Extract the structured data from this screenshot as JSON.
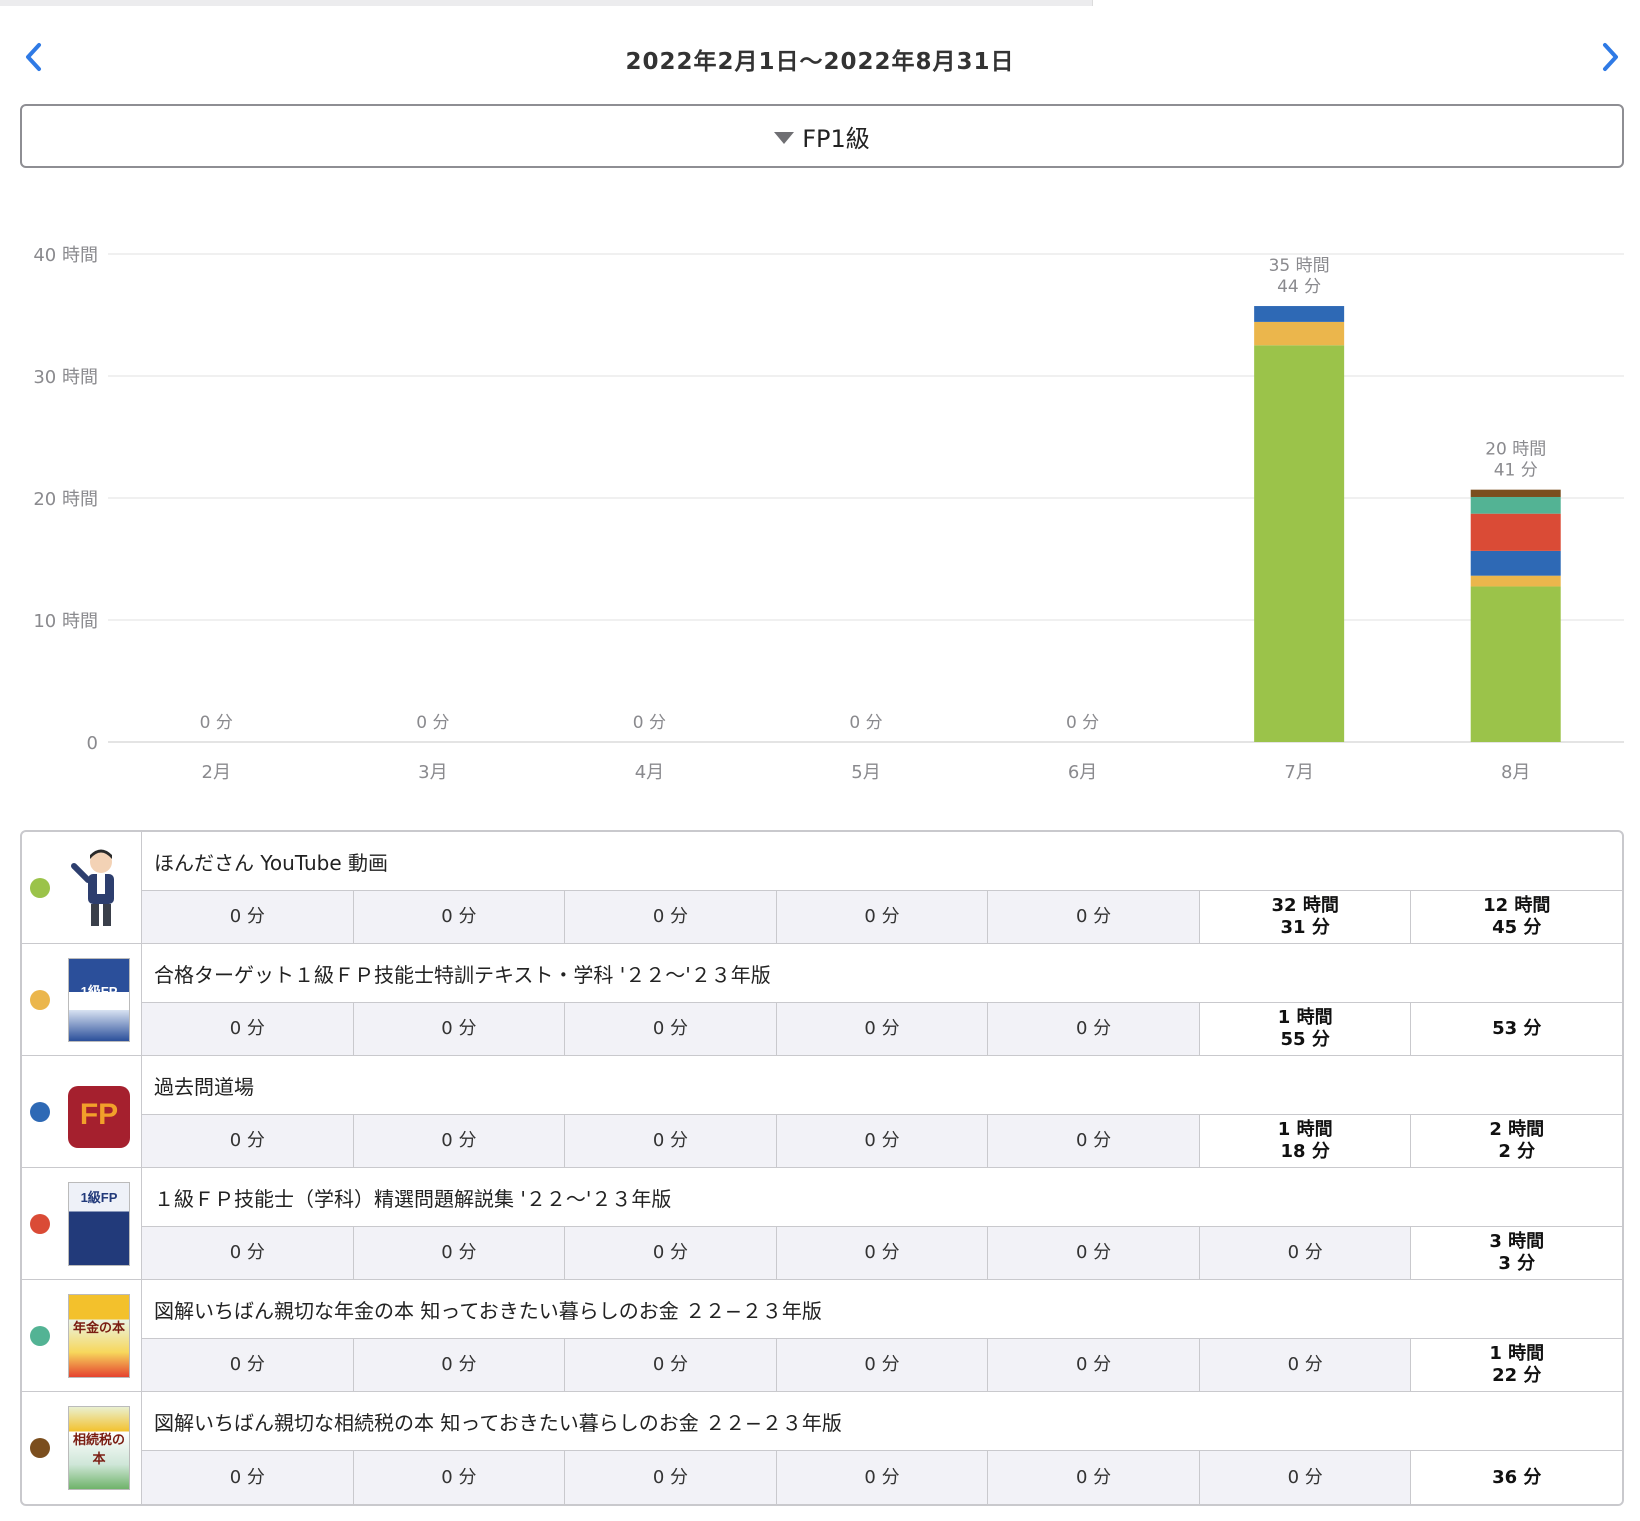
{
  "header": {
    "date_range": "2022年2月1日〜2022年8月31日"
  },
  "filter": {
    "selected": "FP1級"
  },
  "colors": {
    "accent": "#2f7ae5",
    "series": [
      "#9bc34a",
      "#ebb64c",
      "#2e69b5",
      "#da4b36",
      "#53b394",
      "#7b4e1e"
    ]
  },
  "chart_data": {
    "type": "bar",
    "stacked": true,
    "categories": [
      "2月",
      "3月",
      "4月",
      "5月",
      "6月",
      "7月",
      "8月"
    ],
    "yticks": [
      "0",
      "10 時間",
      "20 時間",
      "30 時間",
      "40 時間"
    ],
    "ylim": [
      0,
      40
    ],
    "yunit": "hours",
    "grid": true,
    "totals": [
      [
        "0 分"
      ],
      [
        "0 分"
      ],
      [
        "0 分"
      ],
      [
        "0 分"
      ],
      [
        "0 分"
      ],
      [
        "35 時間",
        "44 分"
      ],
      [
        "20 時間",
        "41 分"
      ]
    ],
    "series": [
      {
        "name": "ほんださん YouTube 動画",
        "color": "#9bc34a",
        "values": [
          0,
          0,
          0,
          0,
          0,
          32.517,
          12.75
        ]
      },
      {
        "name": "合格ターゲット１級ＦＰ技能士特訓テキスト・学科 '２２〜'２３年版",
        "color": "#ebb64c",
        "values": [
          0,
          0,
          0,
          0,
          0,
          1.917,
          0.883
        ]
      },
      {
        "name": "過去問道場",
        "color": "#2e69b5",
        "values": [
          0,
          0,
          0,
          0,
          0,
          1.3,
          2.033
        ]
      },
      {
        "name": "１級ＦＰ技能士（学科）精選問題解説集 '２２〜'２３年版",
        "color": "#da4b36",
        "values": [
          0,
          0,
          0,
          0,
          0,
          0,
          3.05
        ]
      },
      {
        "name": "図解いちばん親切な年金の本 知っておきたい暮らしのお金 ２２−２３年版",
        "color": "#53b394",
        "values": [
          0,
          0,
          0,
          0,
          0,
          0,
          1.367
        ]
      },
      {
        "name": "図解いちばん親切な相続税の本 知っておきたい暮らしのお金 ２２−２３年版",
        "color": "#7b4e1e",
        "values": [
          0,
          0,
          0,
          0,
          0,
          0,
          0.6
        ]
      }
    ]
  },
  "records": [
    {
      "title": "ほんださん YouTube 動画",
      "dot_color": "#9bc34a",
      "thumb": "person-avatar",
      "cells": [
        [
          "0 分"
        ],
        [
          "0 分"
        ],
        [
          "0 分"
        ],
        [
          "0 分"
        ],
        [
          "0 分"
        ],
        [
          "32 時間",
          "31 分"
        ],
        [
          "12 時間",
          "45 分"
        ]
      ]
    },
    {
      "title": "合格ターゲット１級ＦＰ技能士特訓テキスト・学科 '２２〜'２３年版",
      "dot_color": "#ebb64c",
      "thumb": "book-cover",
      "cells": [
        [
          "0 分"
        ],
        [
          "0 分"
        ],
        [
          "0 分"
        ],
        [
          "0 分"
        ],
        [
          "0 分"
        ],
        [
          "1 時間",
          "55 分"
        ],
        [
          "53 分"
        ]
      ]
    },
    {
      "title": "過去問道場",
      "dot_color": "#2e69b5",
      "thumb": "app-icon",
      "cells": [
        [
          "0 分"
        ],
        [
          "0 分"
        ],
        [
          "0 分"
        ],
        [
          "0 分"
        ],
        [
          "0 分"
        ],
        [
          "1 時間",
          "18 分"
        ],
        [
          "2 時間",
          "2 分"
        ]
      ]
    },
    {
      "title": "１級ＦＰ技能士（学科）精選問題解説集 '２２〜'２３年版",
      "dot_color": "#da4b36",
      "thumb": "book-cover",
      "cells": [
        [
          "0 分"
        ],
        [
          "0 分"
        ],
        [
          "0 分"
        ],
        [
          "0 分"
        ],
        [
          "0 分"
        ],
        [
          "0 分"
        ],
        [
          "3 時間",
          "3 分"
        ]
      ]
    },
    {
      "title": "図解いちばん親切な年金の本 知っておきたい暮らしのお金 ２２−２３年版",
      "dot_color": "#53b394",
      "thumb": "book-cover",
      "cells": [
        [
          "0 分"
        ],
        [
          "0 分"
        ],
        [
          "0 分"
        ],
        [
          "0 分"
        ],
        [
          "0 分"
        ],
        [
          "0 分"
        ],
        [
          "1 時間",
          "22 分"
        ]
      ]
    },
    {
      "title": "図解いちばん親切な相続税の本 知っておきたい暮らしのお金 ２２−２３年版",
      "dot_color": "#7b4e1e",
      "thumb": "book-cover",
      "cells": [
        [
          "0 分"
        ],
        [
          "0 分"
        ],
        [
          "0 分"
        ],
        [
          "0 分"
        ],
        [
          "0 分"
        ],
        [
          "0 分"
        ],
        [
          "36 分"
        ]
      ]
    }
  ],
  "thumb_text": {
    "fp_logo": "FP",
    "fp_sub": "1",
    "book1": "1級FP",
    "book4": "1級FP",
    "book5": "年金の本",
    "book6": "相続税の本"
  }
}
